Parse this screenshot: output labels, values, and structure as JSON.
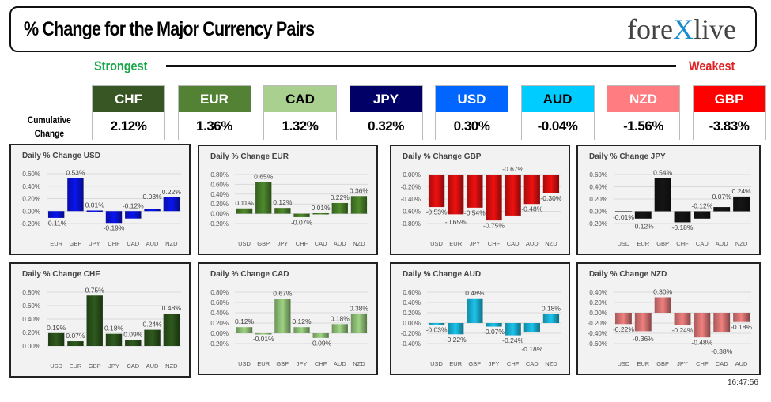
{
  "header": {
    "title": "% Change for the Major Currency Pairs",
    "logo": "forexlive",
    "strongest": "Strongest",
    "weakest": "Weakest",
    "cumulative_label_1": "Cumulative",
    "cumulative_label_2": "Change"
  },
  "ranking": [
    {
      "ccy": "CHF",
      "value": "2.12%",
      "bg": "#375623",
      "fg": "#ffffff"
    },
    {
      "ccy": "EUR",
      "value": "1.36%",
      "bg": "#548235",
      "fg": "#ffffff"
    },
    {
      "ccy": "CAD",
      "value": "1.32%",
      "bg": "#a9d08e",
      "fg": "#000000"
    },
    {
      "ccy": "JPY",
      "value": "0.32%",
      "bg": "#000066",
      "fg": "#ffffff"
    },
    {
      "ccy": "USD",
      "value": "0.30%",
      "bg": "#0066ff",
      "fg": "#ffffff"
    },
    {
      "ccy": "AUD",
      "value": "-0.04%",
      "bg": "#00ccff",
      "fg": "#000000"
    },
    {
      "ccy": "NZD",
      "value": "-1.56%",
      "bg": "#ff7c80",
      "fg": "#ffffff"
    },
    {
      "ccy": "GBP",
      "value": "-3.83%",
      "bg": "#ff0000",
      "fg": "#ffffff"
    }
  ],
  "timestamp": "16:47:56",
  "chart_data": [
    {
      "type": "bar",
      "title": "Daily % Change USD",
      "color": "#0a14f0",
      "categories": [
        "EUR",
        "GBP",
        "JPY",
        "CHF",
        "CAD",
        "AUD",
        "NZD"
      ],
      "values": [
        -0.11,
        0.53,
        0.01,
        -0.19,
        -0.12,
        0.03,
        0.22
      ],
      "ylim": [
        -0.2,
        0.6
      ],
      "yticks": [
        "-0.20%",
        "0.00%",
        "0.20%",
        "0.40%",
        "0.60%"
      ]
    },
    {
      "type": "bar",
      "title": "Daily % Change EUR",
      "color": "#4f8a2c",
      "categories": [
        "USD",
        "GBP",
        "JPY",
        "CHF",
        "CAD",
        "AUD",
        "NZD"
      ],
      "values": [
        0.11,
        0.65,
        0.12,
        -0.07,
        0.01,
        0.22,
        0.36
      ],
      "ylim": [
        -0.2,
        0.8
      ],
      "yticks": [
        "-0.20%",
        "0.00%",
        "0.20%",
        "0.40%",
        "0.60%",
        "0.80%"
      ]
    },
    {
      "type": "bar",
      "title": "Daily % Change GBP",
      "color": "#f01010",
      "categories": [
        "USD",
        "EUR",
        "JPY",
        "CHF",
        "CAD",
        "AUD",
        "NZD"
      ],
      "values": [
        -0.53,
        -0.65,
        -0.54,
        -0.75,
        -0.67,
        -0.48,
        -0.3
      ],
      "ylim": [
        -0.8,
        0.0
      ],
      "yticks": [
        "-0.80%",
        "-0.60%",
        "-0.40%",
        "-0.20%",
        "0.00%"
      ]
    },
    {
      "type": "bar",
      "title": "Daily % Change JPY",
      "color": "#151515",
      "categories": [
        "USD",
        "EUR",
        "GBP",
        "CHF",
        "CAD",
        "AUD",
        "NZD"
      ],
      "values": [
        -0.01,
        -0.12,
        0.54,
        -0.18,
        -0.12,
        0.07,
        0.24
      ],
      "ylim": [
        -0.2,
        0.6
      ],
      "yticks": [
        "-0.20%",
        "0.00%",
        "0.20%",
        "0.40%",
        "0.60%"
      ]
    },
    {
      "type": "bar",
      "title": "Daily % Change CHF",
      "color": "#2f5a1e",
      "categories": [
        "USD",
        "EUR",
        "GBP",
        "JPY",
        "CAD",
        "AUD",
        "NZD"
      ],
      "values": [
        0.19,
        0.07,
        0.75,
        0.18,
        0.09,
        0.24,
        0.48
      ],
      "ylim": [
        0.0,
        0.8
      ],
      "yticks": [
        "0.00%",
        "0.20%",
        "0.40%",
        "0.60%",
        "0.80%"
      ]
    },
    {
      "type": "bar",
      "title": "Daily % Change CAD",
      "color": "#9fd483",
      "categories": [
        "USD",
        "EUR",
        "GBP",
        "JPY",
        "CHF",
        "AUD",
        "NZD"
      ],
      "values": [
        0.12,
        -0.01,
        0.67,
        0.12,
        -0.09,
        0.18,
        0.38
      ],
      "ylim": [
        -0.2,
        0.8
      ],
      "yticks": [
        "-0.20%",
        "0.00%",
        "0.20%",
        "0.40%",
        "0.60%",
        "0.80%"
      ]
    },
    {
      "type": "bar",
      "title": "Daily % Change AUD",
      "color": "#1cc4ec",
      "categories": [
        "USD",
        "EUR",
        "GBP",
        "JPY",
        "CHF",
        "CAD",
        "NZD"
      ],
      "values": [
        -0.03,
        -0.22,
        0.48,
        -0.07,
        -0.24,
        -0.18,
        0.18
      ],
      "ylim": [
        -0.4,
        0.6
      ],
      "yticks": [
        "-0.40%",
        "-0.20%",
        "0.00%",
        "0.20%",
        "0.40%",
        "0.60%"
      ]
    },
    {
      "type": "bar",
      "title": "Daily % Change NZD",
      "color": "#f08080",
      "categories": [
        "USD",
        "EUR",
        "GBP",
        "JPY",
        "CHF",
        "CAD",
        "AUD"
      ],
      "values": [
        -0.22,
        -0.36,
        0.3,
        -0.24,
        -0.48,
        -0.38,
        -0.18
      ],
      "ylim": [
        -0.6,
        0.4
      ],
      "yticks": [
        "-0.60%",
        "-0.40%",
        "-0.20%",
        "0.00%",
        "0.20%",
        "0.40%"
      ]
    }
  ]
}
